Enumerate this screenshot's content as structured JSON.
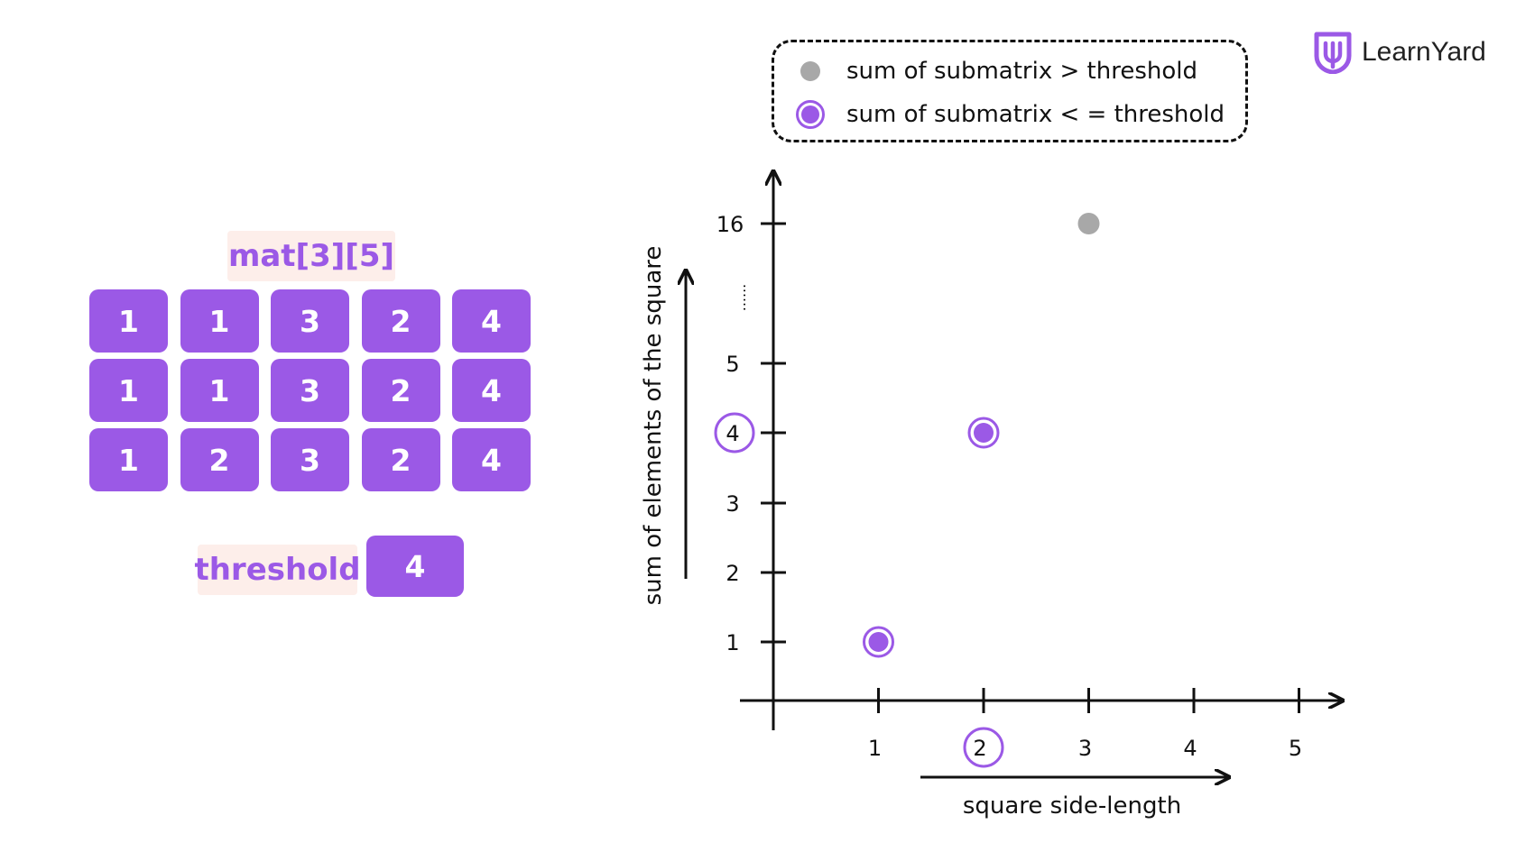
{
  "matrix": {
    "label": "mat[3][5]",
    "rows": [
      [
        "1",
        "1",
        "3",
        "2",
        "4"
      ],
      [
        "1",
        "1",
        "3",
        "2",
        "4"
      ],
      [
        "1",
        "2",
        "3",
        "2",
        "4"
      ]
    ]
  },
  "threshold": {
    "label": "threshold",
    "value": "4"
  },
  "legend": {
    "items": [
      {
        "text": "sum of submatrix > threshold",
        "color": "#a8a8a8"
      },
      {
        "text": "sum of submatrix < = threshold",
        "color": "#9b59e6"
      }
    ]
  },
  "logo": {
    "text": "LearnYard",
    "color": "#9b59e6"
  },
  "chart_data": {
    "type": "scatter",
    "xlabel": "square side-length",
    "ylabel": "sum of elements of the square",
    "x_ticks": [
      "1",
      "2",
      "3",
      "4",
      "5"
    ],
    "y_ticks": [
      "1",
      "2",
      "3",
      "4",
      "5",
      "16"
    ],
    "y_break_symbol": "......",
    "highlighted_x_tick": "2",
    "highlighted_y_tick": "4",
    "points": [
      {
        "x": 1,
        "y": 1,
        "status": "within"
      },
      {
        "x": 2,
        "y": 4,
        "status": "within"
      },
      {
        "x": 3,
        "y": 16,
        "status": "exceeds"
      }
    ],
    "colors": {
      "within": "#9b59e6",
      "exceeds": "#a8a8a8",
      "axis": "#111111"
    }
  }
}
